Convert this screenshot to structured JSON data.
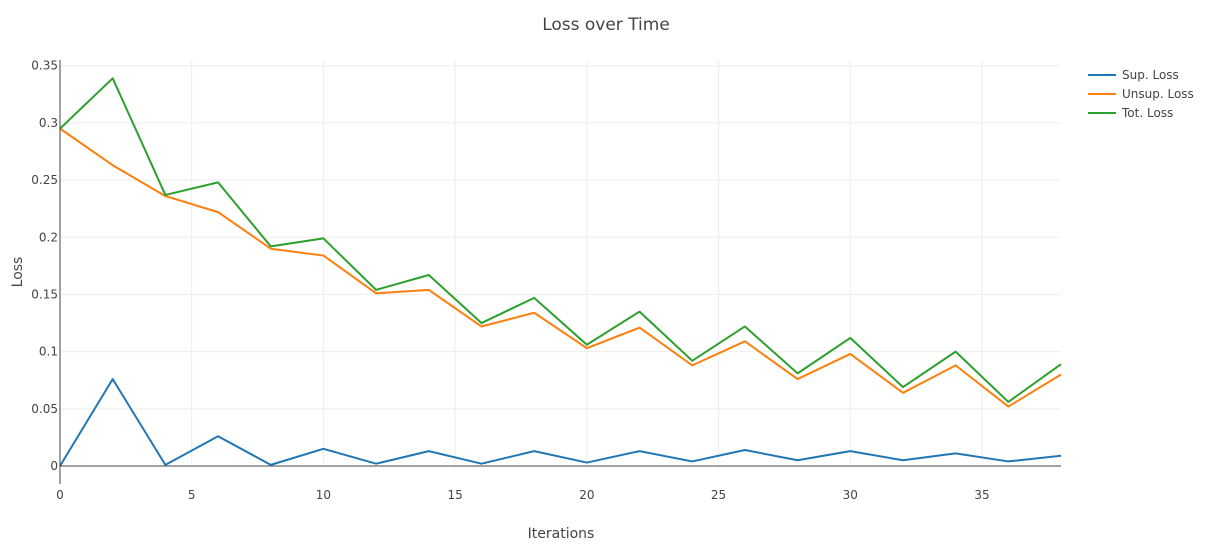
{
  "chart_data": {
    "type": "line",
    "title": "Loss over Time",
    "xlabel": "Iterations",
    "ylabel": "Loss",
    "xlim": [
      0,
      38
    ],
    "ylim": [
      0,
      0.355
    ],
    "grid": true,
    "legend_position": "top-right",
    "x_ticks": [
      0,
      5,
      10,
      15,
      20,
      25,
      30,
      35
    ],
    "x_tick_labels": [
      "0",
      "5",
      "10",
      "15",
      "20",
      "25",
      "30",
      "35"
    ],
    "y_ticks": [
      0,
      0.05,
      0.1,
      0.15,
      0.2,
      0.25,
      0.3,
      0.35
    ],
    "y_tick_labels": [
      "0",
      "0.05",
      "0.1",
      "0.15",
      "0.2",
      "0.25",
      "0.3",
      "0.35"
    ],
    "x": [
      0,
      2,
      4,
      6,
      8,
      10,
      12,
      14,
      16,
      18,
      20,
      22,
      24,
      26,
      28,
      30,
      32,
      34,
      36,
      38
    ],
    "series": [
      {
        "name": "Sup. Loss",
        "color": "#1f77b4",
        "values": [
          0.0,
          0.076,
          0.001,
          0.026,
          0.001,
          0.015,
          0.002,
          0.013,
          0.002,
          0.013,
          0.003,
          0.013,
          0.004,
          0.014,
          0.005,
          0.013,
          0.005,
          0.011,
          0.004,
          0.009
        ]
      },
      {
        "name": "Unsup. Loss",
        "color": "#ff7f0e",
        "values": [
          0.295,
          0.263,
          0.236,
          0.222,
          0.19,
          0.184,
          0.151,
          0.154,
          0.122,
          0.134,
          0.103,
          0.121,
          0.088,
          0.109,
          0.076,
          0.098,
          0.064,
          0.088,
          0.052,
          0.08
        ]
      },
      {
        "name": "Tot. Loss",
        "color": "#2ca02c",
        "values": [
          0.295,
          0.339,
          0.237,
          0.248,
          0.192,
          0.199,
          0.154,
          0.167,
          0.125,
          0.147,
          0.106,
          0.135,
          0.092,
          0.122,
          0.081,
          0.112,
          0.069,
          0.1,
          0.056,
          0.089
        ]
      }
    ]
  }
}
